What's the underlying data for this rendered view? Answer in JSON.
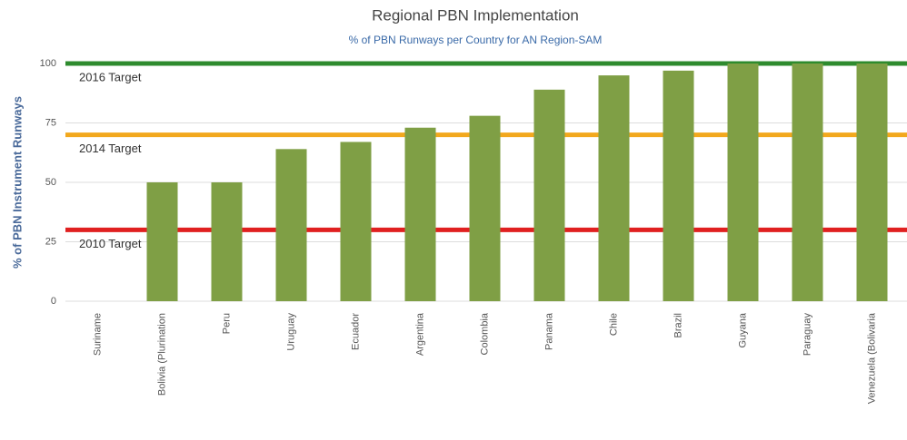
{
  "chart_data": {
    "type": "bar",
    "title": "Regional PBN Implementation",
    "subtitle": "% of PBN Runways per Country for AN Region-SAM",
    "y_label": "% of PBN Instrument Runways",
    "categories": [
      "Suriname",
      "Bolivia (Plurination",
      "Peru",
      "Uruguay",
      "Ecuador",
      "Argentina",
      "Colombia",
      "Panama",
      "Chile",
      "Brazil",
      "Guyana",
      "Paraguay",
      "Venezuela (Bolivaria"
    ],
    "values": [
      0,
      50,
      50,
      64,
      67,
      73,
      78,
      89,
      95,
      97,
      100,
      100,
      100
    ],
    "color": "#7f9f45",
    "ylim": [
      0,
      100
    ],
    "yticks": [
      0,
      25,
      50,
      75,
      100
    ],
    "grid": true,
    "targets": [
      {
        "name": "2016 Target",
        "value": 100,
        "color": "#2e8b2e"
      },
      {
        "name": "2014 Target",
        "value": 70,
        "color": "#f2a81d"
      },
      {
        "name": "2010 Target",
        "value": 30,
        "color": "#e02020"
      }
    ]
  }
}
